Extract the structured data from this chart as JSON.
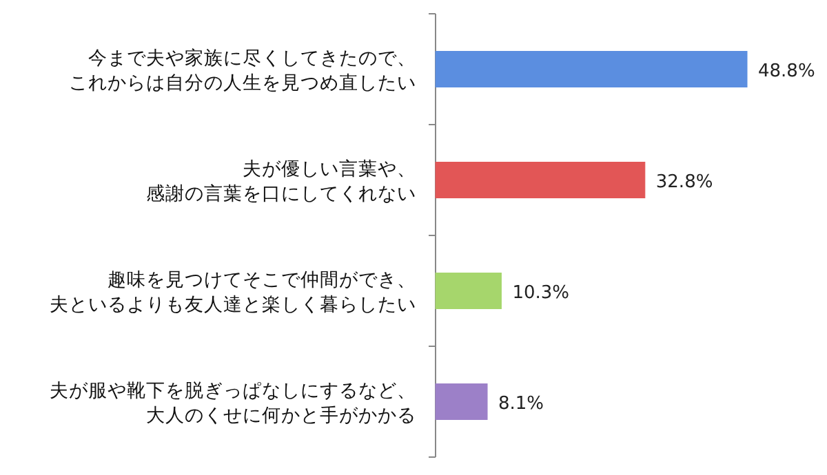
{
  "chart_data": {
    "type": "bar",
    "orientation": "horizontal",
    "categories": [
      "今まで夫や家族に尽くしてきたので、これからは自分の人生を見つめ直したい",
      "夫が優しい言葉や、感謝の言葉を口にしてくれない",
      "趣味を見つけてそこで仲間ができ、夫といるよりも友人達と楽しく暮らしたい",
      "夫が服や靴下を脱ぎっぱなしにするなど、大人のくせに何かと手がかかる"
    ],
    "values": [
      48.8,
      32.8,
      10.3,
      8.1
    ],
    "colors": [
      "#5b8ee0",
      "#e25656",
      "#a6d66c",
      "#9c80c8"
    ],
    "value_labels": [
      "48.8%",
      "32.8%",
      "10.3%",
      "8.1%"
    ]
  }
}
